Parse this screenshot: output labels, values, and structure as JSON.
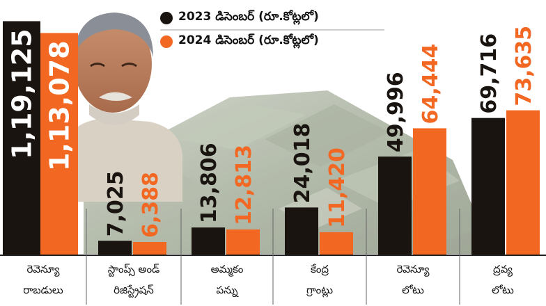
{
  "legend": [
    {
      "label": "2023 డిసెంబర్ (రూ.కోట్లలో)",
      "color": "#1a1411"
    },
    {
      "label": "2024 డిసెంబర్ (రూ.కోట్లలో)",
      "color": "#f26722"
    }
  ],
  "colors": {
    "series_2023": "#1a1411",
    "series_2024": "#f26722",
    "label_orange": "#f26722",
    "label_dark": "#1a1411"
  },
  "chart_data": {
    "type": "bar",
    "categories": [
      {
        "line1": "రెవెన్యూ",
        "line2": "రాబడులు"
      },
      {
        "line1": "స్టాంప్స్ అండ్",
        "line2": "రిజిస్ట్రేషన్"
      },
      {
        "line1": "అమ్మకం",
        "line2": "పన్ను"
      },
      {
        "line1": "కేంద్ర",
        "line2": "గ్రాంట్లు"
      },
      {
        "line1": "రెవెన్యూ",
        "line2": "లోటు"
      },
      {
        "line1": "ద్రవ్య",
        "line2": "లోటు"
      }
    ],
    "series": [
      {
        "name": "2023 డిసెంబర్ (రూ.కోట్లలో)",
        "values": [
          119125,
          7025,
          13806,
          24018,
          49996,
          69716
        ],
        "labels": [
          "1,19,125",
          "7,025",
          "13,806",
          "24,018",
          "49,996",
          "69,716"
        ]
      },
      {
        "name": "2024 డిసెంబర్ (రూ.కోట్లలో)",
        "values": [
          113078,
          6388,
          12813,
          11420,
          64444,
          73635
        ],
        "labels": [
          "1,13,078",
          "6,388",
          "12,813",
          "11,420",
          "64,444",
          "73,635"
        ]
      }
    ],
    "grid": false,
    "legend_position": "top"
  }
}
